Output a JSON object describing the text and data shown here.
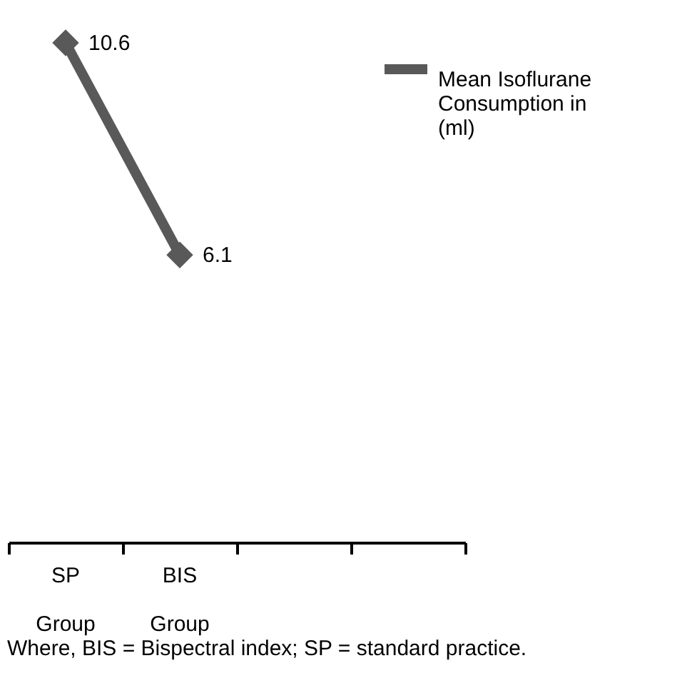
{
  "chart_data": {
    "type": "line",
    "categories": [
      "SP Group",
      "BIS Group",
      null,
      null
    ],
    "series": [
      {
        "name": "Mean Isoflurane Consumption in (ml)",
        "color": "#595959",
        "values": [
          10.6,
          6.1,
          null,
          null
        ]
      }
    ],
    "data_labels": true,
    "marker": "diamond",
    "line_style": "solid",
    "legend": "right",
    "grid": false,
    "annotations": [
      "Where, BIS = Bispectral index; SP = standard practice."
    ]
  }
}
